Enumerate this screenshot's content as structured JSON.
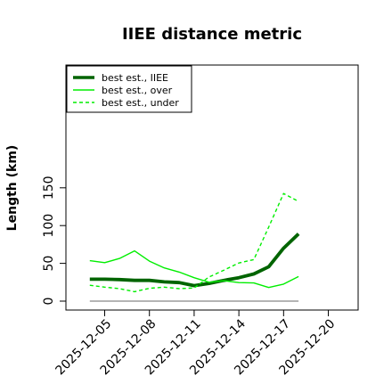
{
  "chart_data": {
    "type": "line",
    "title": "IIEE distance metric",
    "ylabel": "Length (km)",
    "xlabel": "",
    "ylim": [
      0,
      155
    ],
    "yticks": [
      "0",
      "50",
      "100",
      "150"
    ],
    "ytick_values": [
      0,
      50,
      100,
      150
    ],
    "xtick_labels": [
      "2025-12-05",
      "2025-12-08",
      "2025-12-11",
      "2025-12-14",
      "2025-12-17",
      "2025-12-20"
    ],
    "xtick_values": [
      5,
      8,
      11,
      14,
      17,
      20
    ],
    "xlim": [
      2.4,
      22.0
    ],
    "x": [
      4,
      5,
      6,
      7,
      8,
      9,
      10,
      11,
      12,
      13,
      14,
      15,
      16,
      17,
      18
    ],
    "series": [
      {
        "name": "best est., IIEE",
        "color": "#006400",
        "style": "solid-thick",
        "values": [
          29,
          29,
          28.5,
          27.5,
          27.5,
          25.5,
          24.5,
          20.5,
          23.5,
          27.5,
          31,
          36,
          45.5,
          70,
          89
        ]
      },
      {
        "name": "best est., over",
        "color": "#00ee00",
        "style": "solid",
        "values": [
          53.5,
          51,
          56.5,
          66.5,
          53,
          44,
          38.5,
          31,
          25,
          27,
          24.5,
          24,
          18,
          22.5,
          32.5
        ]
      },
      {
        "name": "best est., under",
        "color": "#00ee00",
        "style": "dashed",
        "values": [
          21,
          18.5,
          16.5,
          12.5,
          17,
          18.5,
          16.5,
          17.5,
          32,
          41,
          50.5,
          55,
          98,
          142.5,
          132
        ]
      },
      {
        "name": "",
        "color": "#888888",
        "style": "baseline",
        "values": [
          0,
          0,
          0,
          0,
          0,
          0,
          0,
          0,
          0,
          0,
          0,
          0,
          0,
          0,
          0
        ]
      }
    ],
    "legend": {
      "placement": "top-left",
      "entries": [
        "best est., IIEE",
        "best est., over",
        "best est., under"
      ]
    },
    "grid": false
  }
}
